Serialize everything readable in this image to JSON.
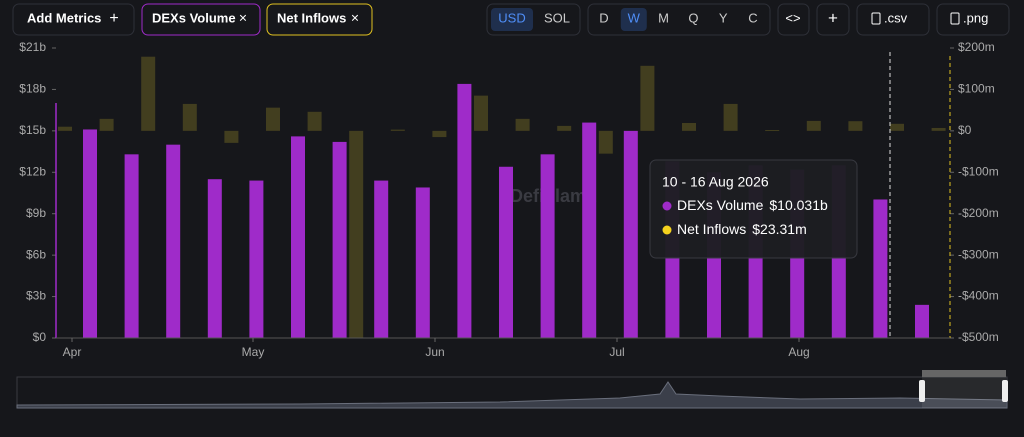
{
  "ui": {
    "add_metrics": "Add Metrics",
    "chips": [
      "DEXs Volume",
      "Net Inflows"
    ],
    "currencies": [
      "USD",
      "SOL"
    ],
    "periods": [
      "D",
      "W",
      "M",
      "Q",
      "Y",
      "C"
    ],
    "exports": [
      ".csv",
      ".png"
    ]
  },
  "chart_data": {
    "type": "bar",
    "watermark": "DefiLlama",
    "categories": [
      null,
      null,
      null,
      null,
      null,
      null,
      null,
      null,
      null,
      null,
      null,
      null,
      null,
      null,
      null,
      null,
      null,
      null,
      null,
      null,
      null,
      null
    ],
    "xtick_labels": [
      "Apr",
      "May",
      "Jun",
      "Jul",
      "Aug"
    ],
    "series": [
      {
        "name": "DEXs Volume",
        "color": "#9f2bc9",
        "axis": "y",
        "values": [
          15.1,
          13.3,
          14.0,
          11.5,
          11.4,
          14.6,
          14.2,
          11.4,
          10.9,
          18.4,
          12.4,
          13.3,
          15.6,
          15.0,
          12.8,
          12.0,
          12.5,
          12.2,
          12.5,
          10.031,
          2.4,
          null
        ]
      },
      {
        "name": "Net Inflows",
        "color": "#4a4520",
        "axis": "y2",
        "values": [
          10,
          29,
          179,
          65,
          -29,
          56,
          46,
          -500,
          3,
          -15,
          85,
          29,
          12,
          -55,
          157,
          19,
          65,
          2,
          24,
          23.31,
          17,
          7
        ]
      }
    ],
    "ylim": [
      0,
      21
    ],
    "yticks": [
      {
        "value": 0,
        "label": "$0"
      },
      {
        "value": 3,
        "label": "$3b"
      },
      {
        "value": 6,
        "label": "$6b"
      },
      {
        "value": 9,
        "label": "$9b"
      },
      {
        "value": 12,
        "label": "$12b"
      },
      {
        "value": 15,
        "label": "$15b"
      },
      {
        "value": 18,
        "label": "$18b"
      },
      {
        "value": 21,
        "label": "$21b"
      }
    ],
    "y2lim": [
      -500,
      200
    ],
    "y2ticks": [
      {
        "value": 200,
        "label": "$200m"
      },
      {
        "value": 100,
        "label": "$100m"
      },
      {
        "value": 0,
        "label": "$0"
      },
      {
        "value": -100,
        "label": "-$100m"
      },
      {
        "value": -200,
        "label": "-$200m"
      },
      {
        "value": -300,
        "label": "-$300m"
      },
      {
        "value": -400,
        "label": "-$400m"
      },
      {
        "value": -500,
        "label": "-$500m"
      }
    ],
    "tooltip": {
      "title": "10 - 16 Aug 2026",
      "rows": [
        {
          "name": "DEXs Volume",
          "value": "$10.031b"
        },
        {
          "name": "Net Inflows",
          "value": "$23.31m"
        }
      ]
    }
  }
}
